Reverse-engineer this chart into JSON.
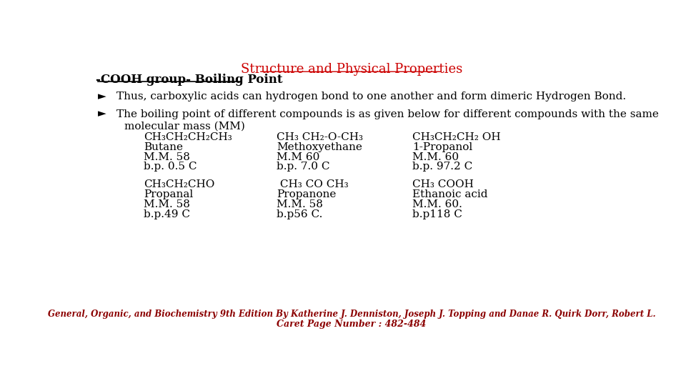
{
  "title": "Structure and Physical Properties",
  "title_color": "#CC0000",
  "subtitle": "-COOH group- Boiling Point",
  "subtitle_color": "#000000",
  "bg_color": "#FFFFFF",
  "bullet1": "Thus, carboxylic acids can hydrogen bond to one another and form dimeric Hydrogen Bond.",
  "bullet2": "The boiling point of different compounds is as given below for different compounds with the same",
  "bullet2b": "molecular mass (MM)",
  "col1_row1": "CH₃CH₂CH₂CH₃",
  "col1_row2": "Butane",
  "col1_row3": "M.M. 58",
  "col1_row4": "b.p. 0.5 C",
  "col2_row1": "CH₃ CH₂-O-CH₃",
  "col2_row2": "Methoxyethane",
  "col2_row3": "M.M 60",
  "col2_row4": "b.p. 7.0 C",
  "col3_row1": "CH₃CH₂CH₂ OH",
  "col3_row2": "1-Propanol",
  "col3_row3": "M.M. 60",
  "col3_row4": "b.p. 97.2 C",
  "col1b_row1": "CH₃CH₂CHO",
  "col1b_row2": "Propanal",
  "col1b_row3": "M.M. 58",
  "col1b_row4": "b.p.49 C",
  "col2b_row1": " CH₃ CO CH₃",
  "col2b_row2": "Propanone",
  "col2b_row3": "M.M. 58",
  "col2b_row4": "b.p56 C.",
  "col3b_row1": "CH₃ COOH",
  "col3b_row2": "Ethanoic acid",
  "col3b_row3": "M.M. 60.",
  "col3b_row4": "b.p118 C",
  "footer1": "General, Organic, and Biochemistry 9th Edition By Katherine J. Denniston, Joseph J. Topping and Danae R. Quirk Dorr, Robert L.",
  "footer2": "Caret Page Number : 482-484",
  "footer_color": "#8B0000",
  "text_color": "#000000",
  "main_font_size": 11,
  "title_font_size": 13
}
